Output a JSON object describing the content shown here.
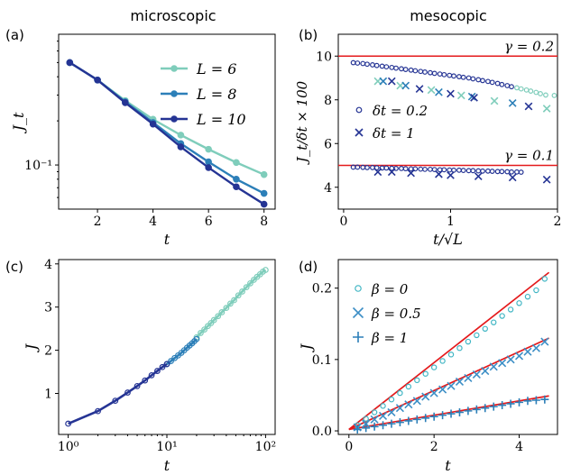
{
  "colors": {
    "L6": "#7fcdbb",
    "L8": "#2c7fb8",
    "L10": "#253494",
    "red": "#e41a1c",
    "d0": "#41b6c4",
    "d05": "#3d8fc6",
    "d1": "#2c7fb8"
  },
  "headers": {
    "left": "microscopic",
    "right": "mesocopic"
  },
  "panel_labels": {
    "a": "(a)",
    "b": "(b)",
    "c": "(c)",
    "d": "(d)"
  },
  "chart_data": [
    {
      "panel": "a",
      "type": "line",
      "xlabel": "t",
      "ylabel": "J_t",
      "xlim": [
        0.6,
        8.4
      ],
      "ylim": [
        0.05,
        0.78
      ],
      "yscale": "log",
      "xticks": [
        2,
        4,
        6,
        8
      ],
      "yticks": [
        0.1
      ],
      "ytick_labels": [
        "10⁻¹"
      ],
      "legend_position": "top-right",
      "series": [
        {
          "name": "L = 6",
          "color_key": "L6",
          "x": [
            1,
            2,
            3,
            4,
            5,
            6,
            7,
            8
          ],
          "y": [
            0.5,
            0.38,
            0.275,
            0.205,
            0.16,
            0.128,
            0.104,
            0.086
          ]
        },
        {
          "name": "L = 8",
          "color_key": "L8",
          "x": [
            1,
            2,
            3,
            4,
            5,
            6,
            7,
            8
          ],
          "y": [
            0.5,
            0.38,
            0.27,
            0.195,
            0.14,
            0.105,
            0.08,
            0.064
          ]
        },
        {
          "name": "L = 10",
          "color_key": "L10",
          "x": [
            1,
            2,
            3,
            4,
            5,
            6,
            7,
            8
          ],
          "y": [
            0.5,
            0.38,
            0.266,
            0.19,
            0.133,
            0.096,
            0.071,
            0.054
          ]
        }
      ]
    },
    {
      "panel": "b",
      "type": "scatter",
      "xlabel": "t/√L",
      "ylabel": "J_t/δt × 100",
      "xlim": [
        -0.05,
        2.0
      ],
      "ylim": [
        3.0,
        11.0
      ],
      "xticks": [
        0,
        1,
        2
      ],
      "yticks": [
        4,
        6,
        8,
        10
      ],
      "hlines": [
        {
          "y": 10,
          "label": "γ = 0.2"
        },
        {
          "y": 5,
          "label": "γ = 0.1"
        }
      ],
      "legend_position": "center-left",
      "series": [
        {
          "name": "δt = 0.2",
          "marker": "circle",
          "group": "γ = 0.2",
          "x": [
            0.09,
            0.13,
            0.18,
            0.22,
            0.27,
            0.31,
            0.36,
            0.4,
            0.45,
            0.49,
            0.54,
            0.58,
            0.63,
            0.67,
            0.72,
            0.76,
            0.81,
            0.85,
            0.9,
            0.94,
            0.99,
            1.03,
            1.08,
            1.12,
            1.17,
            1.21,
            1.26,
            1.3,
            1.35,
            1.39,
            1.44,
            1.48,
            1.53,
            1.57,
            1.62,
            1.66,
            1.71,
            1.75,
            1.8,
            1.84,
            1.89,
            1.97
          ],
          "y": [
            9.7,
            9.68,
            9.66,
            9.63,
            9.6,
            9.57,
            9.54,
            9.51,
            9.48,
            9.45,
            9.42,
            9.39,
            9.36,
            9.33,
            9.3,
            9.27,
            9.24,
            9.21,
            9.18,
            9.15,
            9.12,
            9.09,
            9.06,
            9.03,
            9.0,
            8.96,
            8.92,
            8.88,
            8.84,
            8.8,
            8.75,
            8.7,
            8.65,
            8.6,
            8.55,
            8.5,
            8.45,
            8.4,
            8.34,
            8.28,
            8.22,
            8.2
          ]
        },
        {
          "name": "δt = 1",
          "marker": "x",
          "group": "γ = 0.2",
          "x": [
            0.32,
            0.37,
            0.45,
            0.53,
            0.58,
            0.71,
            0.82,
            0.89,
            1.0,
            1.1,
            1.2,
            1.22,
            1.41,
            1.58,
            1.73,
            1.9
          ],
          "y": [
            8.85,
            8.85,
            8.85,
            8.65,
            8.65,
            8.5,
            8.45,
            8.35,
            8.28,
            8.2,
            8.15,
            8.1,
            7.95,
            7.85,
            7.7,
            7.6
          ]
        },
        {
          "name": "δt = 0.2",
          "marker": "circle",
          "group": "γ = 0.1",
          "x": [
            0.09,
            0.13,
            0.18,
            0.22,
            0.27,
            0.31,
            0.36,
            0.4,
            0.45,
            0.49,
            0.54,
            0.58,
            0.63,
            0.67,
            0.72,
            0.76,
            0.81,
            0.85,
            0.9,
            0.94,
            0.99,
            1.03,
            1.08,
            1.12,
            1.17,
            1.21,
            1.26,
            1.3,
            1.35,
            1.39,
            1.44,
            1.48,
            1.53,
            1.57,
            1.62,
            1.66
          ],
          "y": [
            4.92,
            4.92,
            4.91,
            4.9,
            4.9,
            4.89,
            4.88,
            4.88,
            4.87,
            4.86,
            4.86,
            4.85,
            4.84,
            4.84,
            4.83,
            4.82,
            4.82,
            4.81,
            4.8,
            4.8,
            4.79,
            4.78,
            4.78,
            4.77,
            4.76,
            4.76,
            4.75,
            4.74,
            4.74,
            4.73,
            4.72,
            4.72,
            4.71,
            4.7,
            4.7,
            4.69
          ]
        },
        {
          "name": "δt = 1",
          "marker": "x",
          "group": "γ = 0.1",
          "x": [
            0.32,
            0.45,
            0.63,
            0.89,
            1.0,
            1.26,
            1.58,
            1.9
          ],
          "y": [
            4.7,
            4.7,
            4.65,
            4.6,
            4.55,
            4.5,
            4.45,
            4.35
          ]
        }
      ]
    },
    {
      "panel": "c",
      "type": "line",
      "xlabel": "t",
      "ylabel": "J",
      "xscale": "log",
      "xlim": [
        0.8,
        125
      ],
      "ylim": [
        0.05,
        4.1
      ],
      "xticks": [
        1,
        10,
        100
      ],
      "xtick_labels": [
        "10⁰",
        "10¹",
        "10²"
      ],
      "yticks": [
        1,
        2,
        3,
        4
      ],
      "series": [
        {
          "name": "",
          "color_key": "L6",
          "marker": "circle",
          "x": [
            20,
            22,
            24,
            26,
            28,
            30,
            33,
            36,
            40,
            44,
            48,
            53,
            58,
            64,
            70,
            76,
            82,
            88,
            94,
            100
          ],
          "y": [
            2.3,
            2.4,
            2.48,
            2.56,
            2.63,
            2.7,
            2.79,
            2.88,
            2.98,
            3.08,
            3.16,
            3.27,
            3.36,
            3.46,
            3.55,
            3.63,
            3.7,
            3.76,
            3.82,
            3.86
          ]
        },
        {
          "name": "",
          "color_key": "L8",
          "marker": "circle",
          "x": [
            10,
            11,
            12,
            13,
            14,
            15,
            16,
            17,
            18,
            19,
            20
          ],
          "y": [
            1.68,
            1.75,
            1.82,
            1.88,
            1.94,
            2.0,
            2.06,
            2.11,
            2.16,
            2.21,
            2.26
          ]
        },
        {
          "name": "",
          "color_key": "L10",
          "marker": "circle",
          "x": [
            1,
            2,
            3,
            4,
            5,
            6,
            7,
            8,
            9,
            10
          ],
          "y": [
            0.3,
            0.59,
            0.83,
            1.02,
            1.17,
            1.3,
            1.42,
            1.52,
            1.61,
            1.68
          ]
        }
      ]
    },
    {
      "panel": "d",
      "type": "scatter",
      "xlabel": "t",
      "ylabel": "J",
      "xlim": [
        -0.25,
        4.9
      ],
      "ylim": [
        -0.005,
        0.24
      ],
      "xticks": [
        0,
        2,
        4
      ],
      "yticks": [
        0.0,
        0.1,
        0.2
      ],
      "ytick_labels": [
        "0.0",
        "0.1",
        "0.2"
      ],
      "legend_position": "top-left",
      "series": [
        {
          "name": "β = 0",
          "marker": "circle",
          "color_key": "d0",
          "x": [
            0.2,
            0.4,
            0.6,
            0.8,
            1.0,
            1.2,
            1.4,
            1.6,
            1.8,
            2.0,
            2.2,
            2.4,
            2.6,
            2.8,
            3.0,
            3.2,
            3.4,
            3.6,
            3.8,
            4.0,
            4.2,
            4.4,
            4.6
          ],
          "y": [
            0.008,
            0.017,
            0.026,
            0.035,
            0.044,
            0.053,
            0.062,
            0.071,
            0.08,
            0.089,
            0.098,
            0.107,
            0.116,
            0.125,
            0.134,
            0.143,
            0.152,
            0.161,
            0.17,
            0.179,
            0.188,
            0.197,
            0.213
          ]
        },
        {
          "name": "β = 0.5",
          "marker": "x",
          "color_key": "d05",
          "x": [
            0.2,
            0.4,
            0.6,
            0.8,
            1.0,
            1.2,
            1.4,
            1.6,
            1.8,
            2.0,
            2.2,
            2.4,
            2.6,
            2.8,
            3.0,
            3.2,
            3.4,
            3.6,
            3.8,
            4.0,
            4.2,
            4.4,
            4.6
          ],
          "y": [
            0.005,
            0.01,
            0.016,
            0.021,
            0.026,
            0.032,
            0.037,
            0.042,
            0.048,
            0.053,
            0.058,
            0.063,
            0.069,
            0.074,
            0.079,
            0.084,
            0.09,
            0.095,
            0.1,
            0.105,
            0.111,
            0.116,
            0.125
          ]
        },
        {
          "name": "β = 1",
          "marker": "plus",
          "color_key": "d1",
          "x": [
            0.2,
            0.4,
            0.6,
            0.8,
            1.0,
            1.2,
            1.4,
            1.6,
            1.8,
            2.0,
            2.2,
            2.4,
            2.6,
            2.8,
            3.0,
            3.2,
            3.4,
            3.6,
            3.8,
            4.0,
            4.2,
            4.4,
            4.6
          ],
          "y": [
            0.002,
            0.004,
            0.006,
            0.008,
            0.01,
            0.012,
            0.014,
            0.016,
            0.018,
            0.02,
            0.022,
            0.024,
            0.026,
            0.028,
            0.03,
            0.032,
            0.034,
            0.036,
            0.038,
            0.04,
            0.042,
            0.043,
            0.044
          ]
        }
      ],
      "fit_lines": [
        {
          "x": [
            0,
            4.7
          ],
          "y": [
            0.002,
            0.222
          ]
        },
        {
          "x": [
            0,
            4.7
          ],
          "y": [
            0.002,
            0.13
          ]
        },
        {
          "x": [
            0,
            4.7
          ],
          "y": [
            0.002,
            0.049
          ]
        }
      ]
    }
  ]
}
